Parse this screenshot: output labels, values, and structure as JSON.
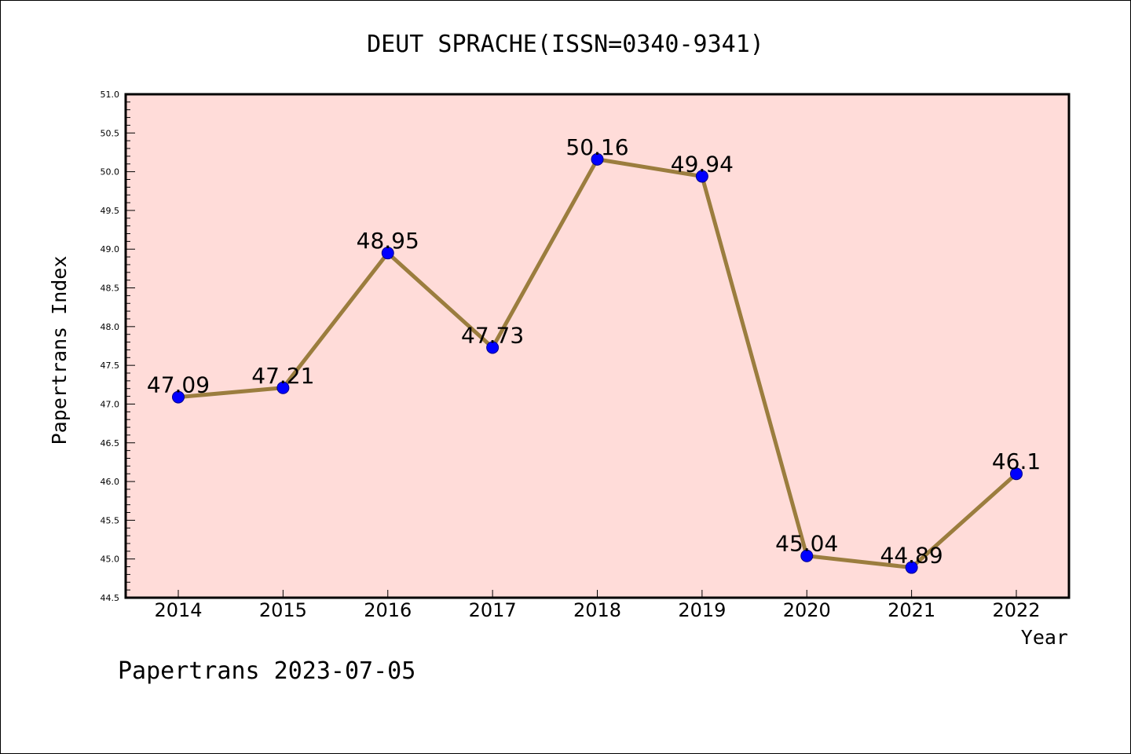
{
  "chart_data": {
    "type": "line",
    "title": "DEUT SPRACHE(ISSN=0340-9341)",
    "xlabel": "Year",
    "ylabel": "Papertrans Index",
    "footer": "Papertrans 2023-07-05",
    "x": [
      "2014",
      "2015",
      "2016",
      "2017",
      "2018",
      "2019",
      "2020",
      "2021",
      "2022"
    ],
    "series": [
      {
        "values": [
          47.09,
          47.21,
          48.95,
          47.73,
          50.16,
          49.94,
          45.04,
          44.89,
          46.1
        ],
        "labels": [
          "47.09",
          "47.21",
          "48.95",
          "47.73",
          "50.16",
          "49.94",
          "45.04",
          "44.89",
          "46.1"
        ]
      }
    ],
    "ylim": [
      44.5,
      51.0
    ],
    "yticks": [
      "44.5",
      "45.0",
      "45.5",
      "46.0",
      "46.5",
      "47.0",
      "47.5",
      "48.0",
      "48.5",
      "49.0",
      "49.5",
      "50.0",
      "50.5",
      "51.0"
    ],
    "grid": false,
    "colors": {
      "plot_background": "#ffdcd9",
      "line": "#9b7d3e",
      "marker": "#0000ff"
    }
  }
}
